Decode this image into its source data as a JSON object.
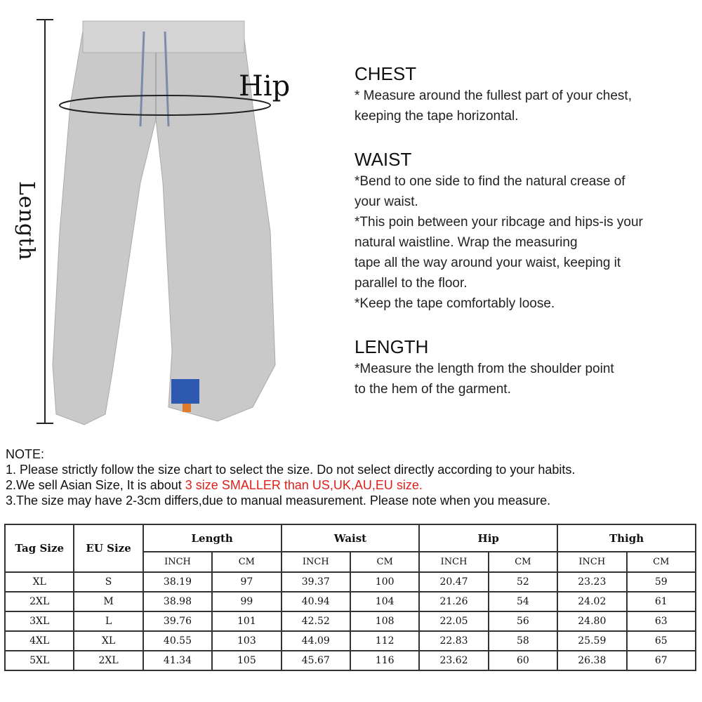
{
  "illustration": {
    "hip_label": "Hip",
    "length_label": "Length",
    "garment_color": "#c9c9c9"
  },
  "guide": [
    {
      "title": "CHEST",
      "lines": [
        "* Measure around the fullest part of your chest,",
        "keeping the tape horizontal."
      ]
    },
    {
      "title": "WAIST",
      "lines": [
        "*Bend to one side to find the natural crease of",
        "your waist.",
        "*This poin between your ribcage and hips-is your",
        "natural waistline. Wrap the measuring",
        "tape all the way around your waist, keeping it",
        "parallel to the floor.",
        "*Keep the tape comfortably loose."
      ]
    },
    {
      "title": "LENGTH",
      "lines": [
        "*Measure the length from the shoulder point",
        "to the hem of the garment."
      ]
    }
  ],
  "note": {
    "title": "NOTE:",
    "line1": "1. Please strictly follow the size chart to select the size. Do not select directly according to your habits.",
    "line2_prefix": "2.We sell Asian Size, It is about ",
    "line2_highlight": "3 size SMALLER than US,UK,AU,EU size.",
    "line3": "3.The size may have 2-3cm differs,due to manual measurement. Please note when you measure.",
    "highlight_color": "#e0201c"
  },
  "table": {
    "headers": [
      "Tag Size",
      "EU Size"
    ],
    "groups": [
      "Length",
      "Waist",
      "Hip",
      "Thigh"
    ],
    "units": [
      "INCH",
      "CM"
    ],
    "rows": [
      [
        "XL",
        "S",
        "38.19",
        "97",
        "39.37",
        "100",
        "20.47",
        "52",
        "23.23",
        "59"
      ],
      [
        "2XL",
        "M",
        "38.98",
        "99",
        "40.94",
        "104",
        "21.26",
        "54",
        "24.02",
        "61"
      ],
      [
        "3XL",
        "L",
        "39.76",
        "101",
        "42.52",
        "108",
        "22.05",
        "56",
        "24.80",
        "63"
      ],
      [
        "4XL",
        "XL",
        "40.55",
        "103",
        "44.09",
        "112",
        "22.83",
        "58",
        "25.59",
        "65"
      ],
      [
        "5XL",
        "2XL",
        "41.34",
        "105",
        "45.67",
        "116",
        "23.62",
        "60",
        "26.38",
        "67"
      ]
    ]
  }
}
